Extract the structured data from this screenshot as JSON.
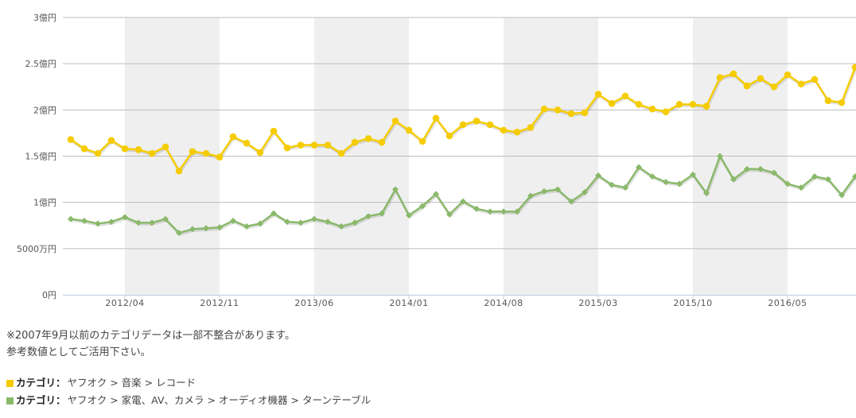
{
  "chart_data": {
    "type": "line",
    "title": "",
    "xlabel": "",
    "ylabel": "",
    "ylim": [
      0,
      300000000
    ],
    "y_ticks": [
      {
        "value": 0,
        "label": "0円"
      },
      {
        "value": 50000000,
        "label": "5000万円"
      },
      {
        "value": 100000000,
        "label": "1億円"
      },
      {
        "value": 150000000,
        "label": "1.5億円"
      },
      {
        "value": 200000000,
        "label": "2億円"
      },
      {
        "value": 250000000,
        "label": "2.5億円"
      },
      {
        "value": 300000000,
        "label": "3億円"
      }
    ],
    "x_tick_labels": [
      "2012/04",
      "2012/11",
      "2013/06",
      "2014/01",
      "2014/08",
      "2015/03",
      "2015/10",
      "2016/05"
    ],
    "x_start": "2011/12",
    "x_end": "2016/10",
    "grid": true,
    "alternating_bands": true,
    "legend_position": "bottom",
    "series": [
      {
        "name": "カテゴリ：ヤフオク > 音楽 > レコード",
        "color": "#f5cc00",
        "marker": "circle",
        "values_oku": [
          1.68,
          1.58,
          1.53,
          1.67,
          1.58,
          1.57,
          1.53,
          1.6,
          1.34,
          1.55,
          1.53,
          1.49,
          1.71,
          1.64,
          1.54,
          1.77,
          1.59,
          1.62,
          1.62,
          1.62,
          1.53,
          1.65,
          1.69,
          1.65,
          1.88,
          1.78,
          1.66,
          1.91,
          1.72,
          1.84,
          1.88,
          1.84,
          1.78,
          1.76,
          1.81,
          2.01,
          2.0,
          1.96,
          1.97,
          2.17,
          2.07,
          2.15,
          2.06,
          2.01,
          1.98,
          2.06,
          2.06,
          2.04,
          2.35,
          2.39,
          2.26,
          2.34,
          2.25,
          2.38,
          2.28,
          2.33,
          2.1,
          2.08,
          2.46
        ]
      },
      {
        "name": "カテゴリ：ヤフオク > 家電、AV、カメラ > オーディオ機器 > ターンテーブル",
        "color": "#8ab96a",
        "marker": "diamond",
        "values_oku": [
          0.82,
          0.8,
          0.77,
          0.79,
          0.84,
          0.78,
          0.78,
          0.82,
          0.67,
          0.71,
          0.72,
          0.73,
          0.8,
          0.74,
          0.77,
          0.88,
          0.79,
          0.78,
          0.82,
          0.79,
          0.74,
          0.78,
          0.85,
          0.88,
          1.14,
          0.86,
          0.96,
          1.09,
          0.87,
          1.01,
          0.93,
          0.9,
          0.9,
          0.9,
          1.07,
          1.12,
          1.14,
          1.01,
          1.11,
          1.29,
          1.19,
          1.16,
          1.38,
          1.28,
          1.22,
          1.2,
          1.3,
          1.1,
          1.5,
          1.25,
          1.36,
          1.36,
          1.32,
          1.2,
          1.16,
          1.28,
          1.25,
          1.08,
          1.28
        ]
      }
    ]
  },
  "notes": {
    "line1": "※2007年9月以前のカテゴリデータは一部不整合があります。",
    "line2": "参考数値としてご活用下さい。"
  },
  "legend": [
    {
      "key": "カテゴリ：",
      "path": "ヤフオク > 音楽 > レコード",
      "color": "#f5cc00"
    },
    {
      "key": "カテゴリ：",
      "path": "ヤフオク > 家電、AV、カメラ > オーディオ機器 > ターンテーブル",
      "color": "#8ab96a"
    }
  ]
}
